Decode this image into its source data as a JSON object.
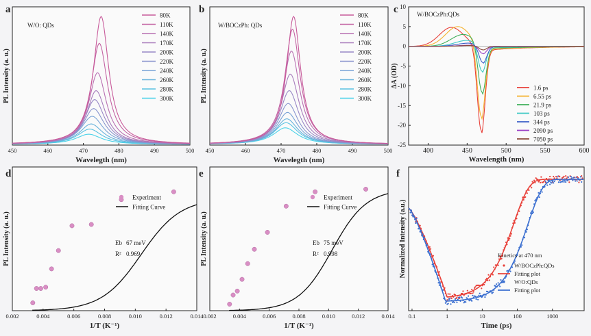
{
  "chart_data": [
    {
      "id": "a",
      "panel_label": "a",
      "type": "line",
      "annotation": "W/O: QDs",
      "xlabel": "Wavelegth (nm)",
      "ylabel": "PL Intensity (a. u.)",
      "xlim": [
        450,
        500
      ],
      "ylim": [
        0,
        1.08
      ],
      "xticks": [
        450,
        460,
        470,
        480,
        490,
        500
      ],
      "legend_position": "top-right",
      "series": [
        {
          "name": "80K",
          "peak": 475,
          "width": 2.6,
          "height": 1.0,
          "color": "#c85a9a"
        },
        {
          "name": "110K",
          "peak": 474.5,
          "width": 2.8,
          "height": 0.79,
          "color": "#c464a4"
        },
        {
          "name": "140K",
          "peak": 474,
          "width": 3.0,
          "height": 0.56,
          "color": "#b870b2"
        },
        {
          "name": "170K",
          "peak": 473.6,
          "width": 3.2,
          "height": 0.42,
          "color": "#a77cbc"
        },
        {
          "name": "200K",
          "peak": 473.2,
          "width": 3.4,
          "height": 0.35,
          "color": "#9888c6"
        },
        {
          "name": "220K",
          "peak": 472.9,
          "width": 3.6,
          "height": 0.28,
          "color": "#8894ce"
        },
        {
          "name": "240K",
          "peak": 472.5,
          "width": 3.8,
          "height": 0.22,
          "color": "#78a2d6"
        },
        {
          "name": "260K",
          "peak": 472.2,
          "width": 4.0,
          "height": 0.16,
          "color": "#68b2dc"
        },
        {
          "name": "280K",
          "peak": 471.8,
          "width": 4.2,
          "height": 0.12,
          "color": "#58c2e2"
        },
        {
          "name": "300K",
          "peak": 471.5,
          "width": 4.4,
          "height": 0.08,
          "color": "#4ad2e8"
        }
      ]
    },
    {
      "id": "b",
      "panel_label": "b",
      "type": "line",
      "annotation": "W/BOCzPh: QDs",
      "xlabel": "Wavelegth (nm)",
      "ylabel": "PL Intensity (a. u.)",
      "xlim": [
        450,
        500
      ],
      "ylim": [
        0,
        1.08
      ],
      "xticks": [
        450,
        460,
        470,
        480,
        490,
        500
      ],
      "legend_position": "top-right",
      "series": [
        {
          "name": "80K",
          "peak": 473.5,
          "width": 2.4,
          "height": 1.0,
          "color": "#c85a9a"
        },
        {
          "name": "110K",
          "peak": 473.2,
          "width": 2.6,
          "height": 0.9,
          "color": "#c464a4"
        },
        {
          "name": "140K",
          "peak": 472.9,
          "width": 2.8,
          "height": 0.73,
          "color": "#b870b2"
        },
        {
          "name": "170K",
          "peak": 472.6,
          "width": 3.0,
          "height": 0.55,
          "color": "#a77cbc"
        },
        {
          "name": "200K",
          "peak": 472.3,
          "width": 3.2,
          "height": 0.42,
          "color": "#9888c6"
        },
        {
          "name": "220K",
          "peak": 472.0,
          "width": 3.4,
          "height": 0.32,
          "color": "#8894ce"
        },
        {
          "name": "240K",
          "peak": 471.8,
          "width": 3.6,
          "height": 0.25,
          "color": "#78a2d6"
        },
        {
          "name": "260K",
          "peak": 471.6,
          "width": 3.8,
          "height": 0.2,
          "color": "#68b2dc"
        },
        {
          "name": "280K",
          "peak": 471.4,
          "width": 4.0,
          "height": 0.17,
          "color": "#58c2e2"
        },
        {
          "name": "300K",
          "peak": 471.2,
          "width": 4.2,
          "height": 0.13,
          "color": "#4ad2e8"
        }
      ]
    },
    {
      "id": "c",
      "panel_label": "c",
      "type": "line",
      "annotation": "W/BOCzPh:QDs",
      "xlabel": "Wavelength (nm)",
      "ylabel": "ΔA (OD)",
      "xlim": [
        375,
        600
      ],
      "ylim": [
        -25,
        10
      ],
      "xticks": [
        400,
        450,
        500,
        550,
        600
      ],
      "yticks": [
        -25,
        -20,
        -15,
        -10,
        -5,
        0,
        5,
        10
      ],
      "legend_position": "bottom-right",
      "series": [
        {
          "name": "1.6 ps",
          "color": "#e8413a",
          "pos_peak": 430,
          "pos_height": 4.8,
          "neg_peak": 468,
          "neg_height": 21.5
        },
        {
          "name": "6.55 ps",
          "color": "#f5b22e",
          "pos_peak": 438,
          "pos_height": 5.0,
          "neg_peak": 468,
          "neg_height": 18.5
        },
        {
          "name": "21.9 ps",
          "color": "#3fae5a",
          "pos_peak": 445,
          "pos_height": 3.0,
          "neg_peak": 469,
          "neg_height": 12.5
        },
        {
          "name": "103 ps",
          "color": "#3ec9c4",
          "pos_peak": 450,
          "pos_height": 1.5,
          "neg_peak": 469,
          "neg_height": 7.0
        },
        {
          "name": "344 ps",
          "color": "#3b5fc8",
          "pos_peak": 452,
          "pos_height": 0.8,
          "neg_peak": 470,
          "neg_height": 4.5
        },
        {
          "name": "2090 ps",
          "color": "#9a3fc4",
          "pos_peak": 455,
          "pos_height": 0.3,
          "neg_peak": 470,
          "neg_height": 2.0
        },
        {
          "name": "7050 ps",
          "color": "#8a4a3a",
          "pos_peak": 455,
          "pos_height": 0.2,
          "neg_peak": 470,
          "neg_height": 1.0
        }
      ]
    },
    {
      "id": "d",
      "panel_label": "d",
      "type": "scatter",
      "xlabel": "1/T (K⁻¹)",
      "ylabel": "PL Intensity (a. u.)",
      "xlim": [
        0.002,
        0.014
      ],
      "ylim": [
        0,
        1.1
      ],
      "xticks": [
        0.002,
        0.004,
        0.006,
        0.008,
        0.01,
        0.012,
        0.014
      ],
      "xtick_labels": [
        "0.002",
        "0.004",
        "0.006",
        "0.008",
        "0.010",
        "0.012",
        "0.014"
      ],
      "legend": [
        "Experiment",
        "Fitting Curve"
      ],
      "legend_position": "center-right",
      "energy_label": "Eb",
      "energy_value": "67 meV",
      "r2_label": "R²",
      "r2_value": "0.969",
      "points_x": [
        0.00333,
        0.00357,
        0.00385,
        0.00417,
        0.00455,
        0.005,
        0.00588,
        0.00714,
        0.00909,
        0.0125
      ],
      "points_y": [
        0.06,
        0.17,
        0.17,
        0.18,
        0.32,
        0.46,
        0.65,
        0.66,
        0.85,
        0.91
      ],
      "fit": {
        "A": 0.86,
        "C": 3200,
        "Ea_meV": 67
      },
      "marker_color": "#d98ec4"
    },
    {
      "id": "e",
      "panel_label": "e",
      "type": "scatter",
      "xlabel": "1/T (K⁻¹)",
      "ylabel": "PL Intensity (a. u.)",
      "xlim": [
        0.002,
        0.014
      ],
      "ylim": [
        0,
        1.1
      ],
      "xticks": [
        0.002,
        0.004,
        0.006,
        0.008,
        0.01,
        0.012,
        0.014
      ],
      "xtick_labels": [
        "0.002",
        "0.004",
        "0.006",
        "0.008",
        "0.010",
        "0.012",
        "0.014"
      ],
      "legend": [
        "Experiment",
        "Fitting Curve"
      ],
      "legend_position": "center-right",
      "energy_label": "Eb",
      "energy_value": "75 meV",
      "r2_label": "R²",
      "r2_value": "0.998",
      "points_x": [
        0.00333,
        0.00357,
        0.00385,
        0.00417,
        0.00455,
        0.005,
        0.00588,
        0.00714,
        0.00909,
        0.0125
      ],
      "points_y": [
        0.05,
        0.12,
        0.15,
        0.24,
        0.36,
        0.47,
        0.6,
        0.8,
        0.91,
        0.93
      ],
      "fit": {
        "A": 0.93,
        "C": 7400,
        "Ea_meV": 75
      },
      "marker_color": "#d98ec4"
    },
    {
      "id": "f",
      "panel_label": "f",
      "type": "line",
      "xscale": "log",
      "xlabel": "Time (ps)",
      "ylabel": "Normalized Intensity (a.u.)",
      "xlim": [
        0.08,
        8000
      ],
      "ylim": [
        0,
        1.05
      ],
      "xticks": [
        0.1,
        1,
        10,
        100,
        1000
      ],
      "xtick_labels": [
        "0.1",
        "1",
        "10",
        "100",
        "1000"
      ],
      "legend_title": "Kinetics at 470 nm",
      "legend_position": "bottom-right",
      "series": [
        {
          "name": "W/BOCzPh:QDs",
          "kind": "points",
          "color": "#e8413a",
          "min_t": 1.0,
          "tau": 80,
          "min_y": 0.1
        },
        {
          "name": "Fitting plot",
          "kind": "line",
          "color": "#e8413a",
          "min_t": 1.0,
          "tau": 80,
          "min_y": 0.1
        },
        {
          "name": "W/O:QDs",
          "kind": "points",
          "color": "#3b6fd0",
          "min_t": 0.9,
          "tau": 200,
          "min_y": 0.07
        },
        {
          "name": "Fitting plot",
          "kind": "line",
          "color": "#3b6fd0",
          "min_t": 0.9,
          "tau": 200,
          "min_y": 0.07
        }
      ]
    }
  ]
}
